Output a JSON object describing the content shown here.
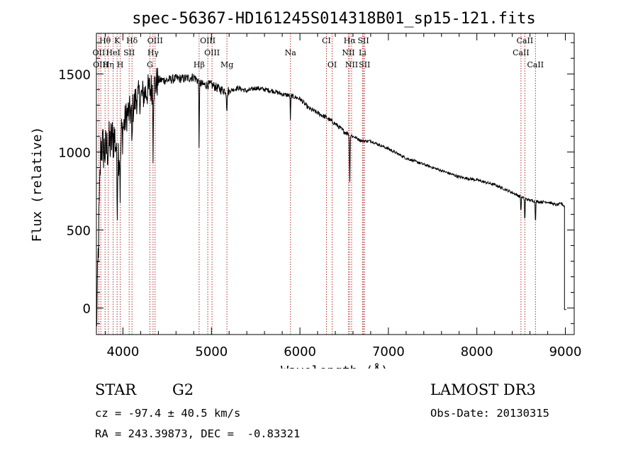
{
  "chart_data": {
    "type": "line",
    "title": "spec-56367-HD161245S014318B01_sp15-121.fits",
    "xlabel": "Wavelength (Å)",
    "ylabel": "Flux (relative)",
    "xlim": [
      3700,
      9100
    ],
    "ylim": [
      -170,
      1760
    ],
    "xticks": [
      4000,
      5000,
      6000,
      7000,
      8000,
      9000
    ],
    "yticks": [
      0,
      500,
      1000,
      1500
    ],
    "grid": false,
    "spectrum_anchors": {
      "wavelength": [
        3700,
        3750,
        3800,
        3850,
        3900,
        3950,
        4000,
        4050,
        4100,
        4150,
        4200,
        4250,
        4300,
        4350,
        4400,
        4500,
        4600,
        4700,
        4800,
        4900,
        5000,
        5100,
        5200,
        5300,
        5400,
        5500,
        5600,
        5700,
        5800,
        5900,
        6000,
        6100,
        6200,
        6300,
        6400,
        6500,
        6600,
        6700,
        6800,
        7000,
        7200,
        7400,
        7600,
        7800,
        8000,
        8200,
        8400,
        8500,
        8600,
        8700,
        8800,
        8900,
        8960,
        8990
      ],
      "flux": [
        -150,
        1050,
        1000,
        1050,
        1100,
        1000,
        1150,
        1250,
        1250,
        1350,
        1350,
        1380,
        1400,
        1420,
        1460,
        1460,
        1470,
        1470,
        1480,
        1430,
        1430,
        1400,
        1390,
        1410,
        1390,
        1410,
        1400,
        1390,
        1370,
        1360,
        1340,
        1280,
        1250,
        1220,
        1180,
        1130,
        1100,
        1070,
        1070,
        1020,
        960,
        920,
        880,
        840,
        820,
        790,
        740,
        710,
        690,
        680,
        680,
        660,
        670,
        650
      ]
    },
    "absorption_dips": [
      {
        "wavelength": 3934,
        "depth": 350,
        "width": 6
      },
      {
        "wavelength": 3969,
        "depth": 300,
        "width": 6
      },
      {
        "wavelength": 4102,
        "depth": 250,
        "width": 4
      },
      {
        "wavelength": 4340,
        "depth": 400,
        "width": 4
      },
      {
        "wavelength": 4861,
        "depth": 420,
        "width": 4
      },
      {
        "wavelength": 5175,
        "depth": 120,
        "width": 6
      },
      {
        "wavelength": 5893,
        "depth": 160,
        "width": 4
      },
      {
        "wavelength": 6563,
        "depth": 300,
        "width": 5
      },
      {
        "wavelength": 8498,
        "depth": 100,
        "width": 4
      },
      {
        "wavelength": 8542,
        "depth": 160,
        "width": 4
      },
      {
        "wavelength": 8662,
        "depth": 140,
        "width": 4
      }
    ],
    "spectral_lines": [
      {
        "label": "Hθ",
        "wavelength": 3798,
        "row": 0
      },
      {
        "label": "K",
        "wavelength": 3934,
        "row": 0
      },
      {
        "label": "Hδ",
        "wavelength": 4102,
        "row": 0
      },
      {
        "label": "OIII",
        "wavelength": 4363,
        "row": 0
      },
      {
        "label": "OIII",
        "wavelength": 4959,
        "row": 0
      },
      {
        "label": "CI",
        "wavelength": 6300,
        "row": 0
      },
      {
        "label": "Hα",
        "wavelength": 6563,
        "row": 0
      },
      {
        "label": "SII",
        "wavelength": 6717,
        "row": 0
      },
      {
        "label": "CaII",
        "wavelength": 8542,
        "row": 0
      },
      {
        "label": "OII",
        "wavelength": 3727,
        "row": 1
      },
      {
        "label": "HeI",
        "wavelength": 3889,
        "row": 1
      },
      {
        "label": "SII",
        "wavelength": 4070,
        "row": 1
      },
      {
        "label": "Hγ",
        "wavelength": 4340,
        "row": 1
      },
      {
        "label": "OIII",
        "wavelength": 5007,
        "row": 1
      },
      {
        "label": "Na",
        "wavelength": 5893,
        "row": 1
      },
      {
        "label": "NII",
        "wavelength": 6548,
        "row": 1
      },
      {
        "label": "Li",
        "wavelength": 6708,
        "row": 1
      },
      {
        "label": "CaII",
        "wavelength": 8498,
        "row": 1
      },
      {
        "label": "OIII",
        "wavelength": 3750,
        "row": 2
      },
      {
        "label": "Hη",
        "wavelength": 3835,
        "row": 2
      },
      {
        "label": "H",
        "wavelength": 3969,
        "row": 2
      },
      {
        "label": "G",
        "wavelength": 4305,
        "row": 2
      },
      {
        "label": "Hβ",
        "wavelength": 4861,
        "row": 2
      },
      {
        "label": "Mg",
        "wavelength": 5175,
        "row": 2
      },
      {
        "label": "OI",
        "wavelength": 6364,
        "row": 2
      },
      {
        "label": "NII",
        "wavelength": 6584,
        "row": 2
      },
      {
        "label": "SII",
        "wavelength": 6731,
        "row": 2
      },
      {
        "label": "CaII",
        "wavelength": 8662,
        "row": 2
      }
    ],
    "line_color": "#000000",
    "marker_color": "#b03030"
  },
  "info": {
    "object_class": "STAR",
    "subclass": "G2",
    "redshift": "cz = -97.4 ± 40.5 km/s",
    "coords": "RA = 243.39873, DEC =  -0.83321",
    "survey": "LAMOST DR3",
    "obs_date": "Obs-Date: 20130315"
  }
}
